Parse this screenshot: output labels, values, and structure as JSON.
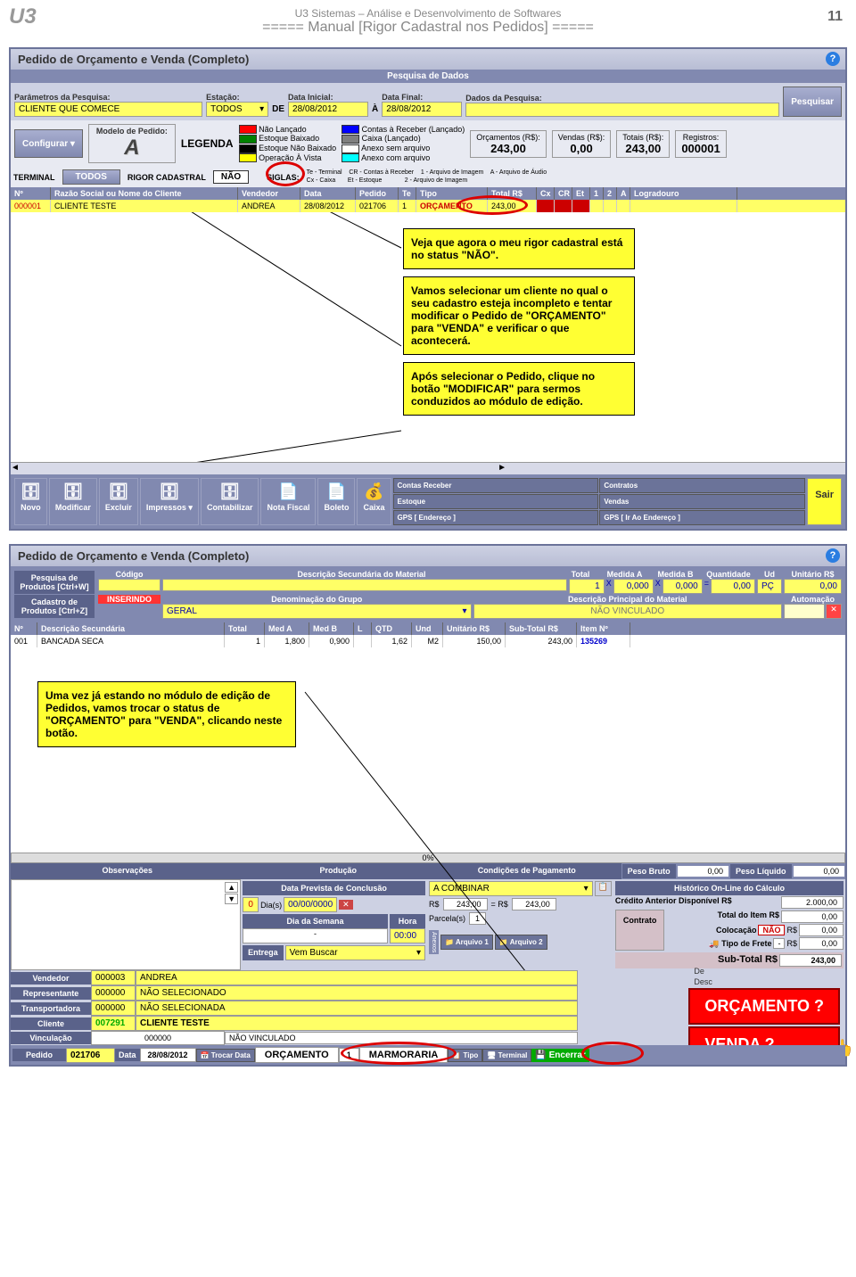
{
  "header": {
    "logo": "U3",
    "company": "U3 Sistemas – Análise e Desenvolvimento de Softwares",
    "manual": "===== Manual [Rigor Cadastral nos Pedidos] =====",
    "page_num": "11"
  },
  "win1": {
    "title": "Pedido de Orçamento e Venda (Completo)",
    "section": "Pesquisa de Dados",
    "search": {
      "params_label": "Parâmetros da Pesquisa:",
      "params_value": "CLIENTE QUE COMECE",
      "station_label": "Estação:",
      "station_value": "TODOS",
      "de": "DE",
      "date_start_label": "Data Inicial:",
      "date_start": "28/08/2012",
      "a": "À",
      "date_end_label": "Data Final:",
      "date_end": "28/08/2012",
      "data_label": "Dados da Pesquisa:",
      "btn": "Pesquisar"
    },
    "legend": {
      "configurar": "Configurar",
      "modelo_label": "Modelo de Pedido:",
      "legenda": "LEGENDA",
      "items_left": [
        "Não Lançado",
        "Estoque Baixado",
        "Estoque Não Baixado",
        "Operação À Vista"
      ],
      "colors_left": [
        "#ff0000",
        "#008000",
        "#000000",
        "#ffff00"
      ],
      "items_right": [
        "Contas à Receber (Lançado)",
        "Caixa (Lançado)",
        "Anexo sem arquivo",
        "Anexo com arquivo"
      ],
      "colors_right": [
        "#0000ff",
        "#808080",
        "#ffffff",
        "#00ffff"
      ],
      "orcamentos_label": "Orçamentos (R$):",
      "orcamentos": "243,00",
      "vendas_label": "Vendas (R$):",
      "vendas": "0,00",
      "totais_label": "Totais (R$):",
      "totais": "243,00",
      "registros_label": "Registros:",
      "registros": "000001"
    },
    "terminal": {
      "terminal": "TERMINAL",
      "todos": "TODOS",
      "rigor": "RIGOR CADASTRAL",
      "nao": "NÃO",
      "siglas": "SIGLAS:",
      "siglas_list": "Te - Terminal    CR - Contas à Receber    1 - Arquivo de Imagem    A - Arquivo de Áudio\nCx - Caixa       Et - Estoque             2 - Arquivo de Imagem"
    },
    "grid": {
      "headers": [
        "Nº",
        "Razão Social ou Nome do Cliente",
        "Vendedor",
        "Data",
        "Pedido",
        "Te",
        "Tipo",
        "Total R$",
        "Cx",
        "CR",
        "Et",
        "1",
        "2",
        "A",
        "Logradouro"
      ],
      "row": [
        "000001",
        "CLIENTE TESTE",
        "ANDREA",
        "28/08/2012",
        "021706",
        "1",
        "ORÇAMENTO",
        "243,00",
        "",
        "",
        "",
        "",
        "",
        "",
        ""
      ]
    },
    "callouts": [
      "Veja que agora o meu rigor cadastral está no status \"NÃO\".",
      "Vamos selecionar um cliente no qual o seu cadastro esteja incompleto e tentar modificar o Pedido de \"ORÇAMENTO\" para \"VENDA\" e verificar o que acontecerá.",
      "Após selecionar o Pedido, clique no botão \"MODIFICAR\" para sermos conduzidos ao módulo de edição."
    ],
    "toolbar": {
      "novo": "Novo",
      "modificar": "Modificar",
      "excluir": "Excluir",
      "impressos": "Impressos",
      "contabilizar": "Contabilizar",
      "nota": "Nota Fiscal",
      "boleto": "Boleto",
      "caixa": "Caixa",
      "contas": "Contas Receber",
      "estoque": "Estoque",
      "gps1": "GPS [ Endereço ]",
      "contratos": "Contratos",
      "vendas_btn": "Vendas",
      "gps2": "GPS [ Ir Ao Endereço ]",
      "sair": "Sair"
    }
  },
  "win2": {
    "title": "Pedido de Orçamento e Venda (Completo)",
    "top": {
      "pesquisa_label": "Pesquisa de Produtos [Ctrl+W]",
      "cadastro_label": "Cadastro de Produtos [Ctrl+Z]",
      "codigo": "Código",
      "descricao": "Descrição Secundária do Material",
      "total": "Total",
      "total_v": "1",
      "medida_a": "Medida A",
      "medida_a_v": "0,000",
      "medida_b": "Medida B",
      "medida_b_v": "0,000",
      "quantidade": "Quantidade",
      "quantidade_v": "0,00",
      "ud": "Ud",
      "ud_v": "PÇ",
      "unitario": "Unitário R$",
      "unitario_v": "0,00",
      "inserindo": "INSERINDO",
      "denominacao": "Denominação do Grupo",
      "geral": "GERAL",
      "desc_principal": "Descrição Principal do Material",
      "nao_vinc": "NÃO VINCULADO",
      "automacao": "Automação"
    },
    "grid": {
      "headers": [
        "Nº",
        "Descrição Secundária",
        "Total",
        "Med A",
        "Med B",
        "L",
        "QTD",
        "Und",
        "Unitário R$",
        "Sub-Total R$",
        "Item Nº"
      ],
      "row": [
        "001",
        "BANCADA SECA",
        "1",
        "1,800",
        "0,900",
        "",
        "1,62",
        "M2",
        "150,00",
        "243,00",
        "135269"
      ]
    },
    "callout": "Uma vez já estando no módulo de edição de Pedidos, vamos trocar o status de \"ORÇAMENTO\" para \"VENDA\", clicando neste botão.",
    "progress": "0%",
    "footer": {
      "observacoes": "Observações",
      "producao": "Produção",
      "condicoes": "Condições de Pagamento",
      "peso_bruto": "Peso Bruto",
      "peso_bruto_v": "0,00",
      "peso_liq": "Peso Líquido",
      "peso_liq_v": "0,00",
      "data_prev": "Data Prevista de Conclusão",
      "a_combinar": "A COMBINAR",
      "historico": "Histórico On-Line do Cálculo",
      "dias": "Dia(s)",
      "dias_n": "0",
      "dias_date": "00/00/0000",
      "rs1": "R$",
      "rs1_v": "243,00",
      "parcelas": "Parcela(s)",
      "parcelas_v": "1",
      "rs2_v": "243,00",
      "credito": "Crédito Anterior Disponível R$",
      "credito_v": "2.000,00",
      "dia_semana": "Dia da Semana",
      "hora": "Hora",
      "hora_v": "00:00",
      "contrato": "Contrato",
      "total_item": "Total do Item R$",
      "total_item_v": "0,00",
      "colocacao": "Colocação",
      "colocacao_nao": "NÃO",
      "colocacao_rs": "R$",
      "colocacao_v": "0,00",
      "entrega": "Entrega",
      "vem_buscar": "Vem Buscar",
      "anexos": "Anexos",
      "arquivo1": "Arquivo 1",
      "arquivo2": "Arquivo 2",
      "tipo_frete": "Tipo de Frete",
      "frete_dash": "-",
      "frete_rs": "R$",
      "frete_v": "0,00",
      "subtotal": "Sub-Total R$",
      "subtotal_v": "243,00",
      "vendedor": "Vendedor",
      "vendedor_cod": "000003",
      "vendedor_nome": "ANDREA",
      "representante": "Representante",
      "rep_cod": "000000",
      "rep_nome": "NÃO SELECIONADO",
      "transportadora": "Transportadora",
      "trans_cod": "000000",
      "trans_nome": "NÃO SELECIONADA",
      "cliente": "Cliente",
      "cliente_cod": "007291",
      "cliente_nome": "CLIENTE TESTE",
      "vinculacao": "Vinculação",
      "vinc_cod": "000000",
      "vinc_nome": "NÃO VINCULADO",
      "pedido": "Pedido",
      "pedido_n": "021706",
      "data": "Data",
      "data_v": "28/08/2012",
      "trocar": "Trocar Data",
      "orcamento": "ORÇAMENTO",
      "terminal_n": "1",
      "marmoraria": "MARMORARIA",
      "tipo": "Tipo",
      "terminal": "Terminal",
      "encerrar": "Encerrar",
      "desc": "Desc",
      "de": "De",
      "orcamento_q": "ORÇAMENTO ?",
      "venda_q": "VENDA ?"
    }
  }
}
